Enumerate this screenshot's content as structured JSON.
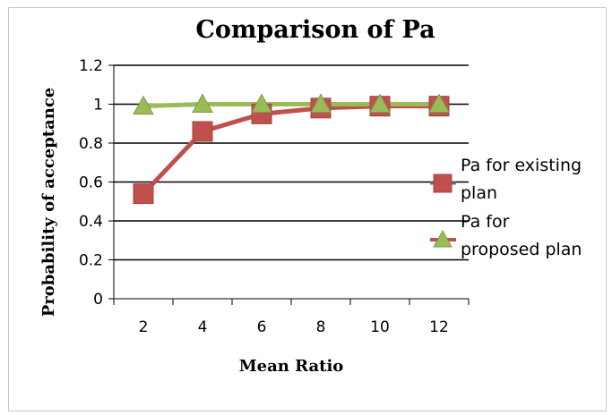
{
  "chart_data": {
    "type": "line",
    "title": "Comparison of Pa",
    "xlabel": "Mean Ratio",
    "ylabel": "Probability of acceptance",
    "categories": [
      "2",
      "4",
      "6",
      "8",
      "10",
      "12"
    ],
    "ylim": [
      0,
      1.2
    ],
    "yticks": [
      "0",
      "0.2",
      "0.4",
      "0.6",
      "0.8",
      "1",
      "1.2"
    ],
    "grid": true,
    "legend_position": "right",
    "series": [
      {
        "name": "Pa for existing plan",
        "values": [
          0.54,
          0.86,
          0.95,
          0.98,
          0.99,
          0.99
        ],
        "color": "#c0504d",
        "marker": "square"
      },
      {
        "name": "Pa for proposed plan",
        "values": [
          0.99,
          1.0,
          1.0,
          1.0,
          1.0,
          1.0
        ],
        "color": "#9bbb59",
        "marker": "triangle"
      }
    ],
    "legend": [
      {
        "lines": [
          "Pa for existing",
          "plan"
        ]
      },
      {
        "lines": [
          "Pa for",
          "proposed plan"
        ]
      }
    ]
  }
}
